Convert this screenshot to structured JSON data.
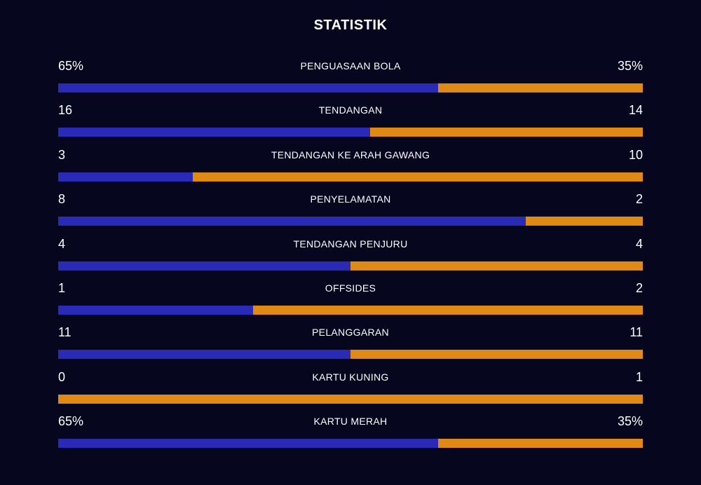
{
  "title": "STATISTIK",
  "colors": {
    "background": "#07061f",
    "home": "#2a2ab8",
    "away": "#e08a14",
    "text": "#ffffff"
  },
  "stats": [
    {
      "label": "PENGUASAAN BOLA",
      "home": "65%",
      "away": "35%",
      "home_share": 0.65
    },
    {
      "label": "TENDANGAN",
      "home": "16",
      "away": "14",
      "home_share": 0.5333
    },
    {
      "label": "TENDANGAN KE ARAH GAWANG",
      "home": "3",
      "away": "10",
      "home_share": 0.2308
    },
    {
      "label": "PENYELAMATAN",
      "home": "8",
      "away": "2",
      "home_share": 0.8
    },
    {
      "label": "TENDANGAN PENJURU",
      "home": "4",
      "away": "4",
      "home_share": 0.5
    },
    {
      "label": "OFFSIDES",
      "home": "1",
      "away": "2",
      "home_share": 0.3333
    },
    {
      "label": "PELANGGARAN",
      "home": "11",
      "away": "11",
      "home_share": 0.5
    },
    {
      "label": "KARTU KUNING",
      "home": "0",
      "away": "1",
      "home_share": 0.0
    },
    {
      "label": "KARTU MERAH",
      "home": "65%",
      "away": "35%",
      "home_share": 0.65
    }
  ]
}
